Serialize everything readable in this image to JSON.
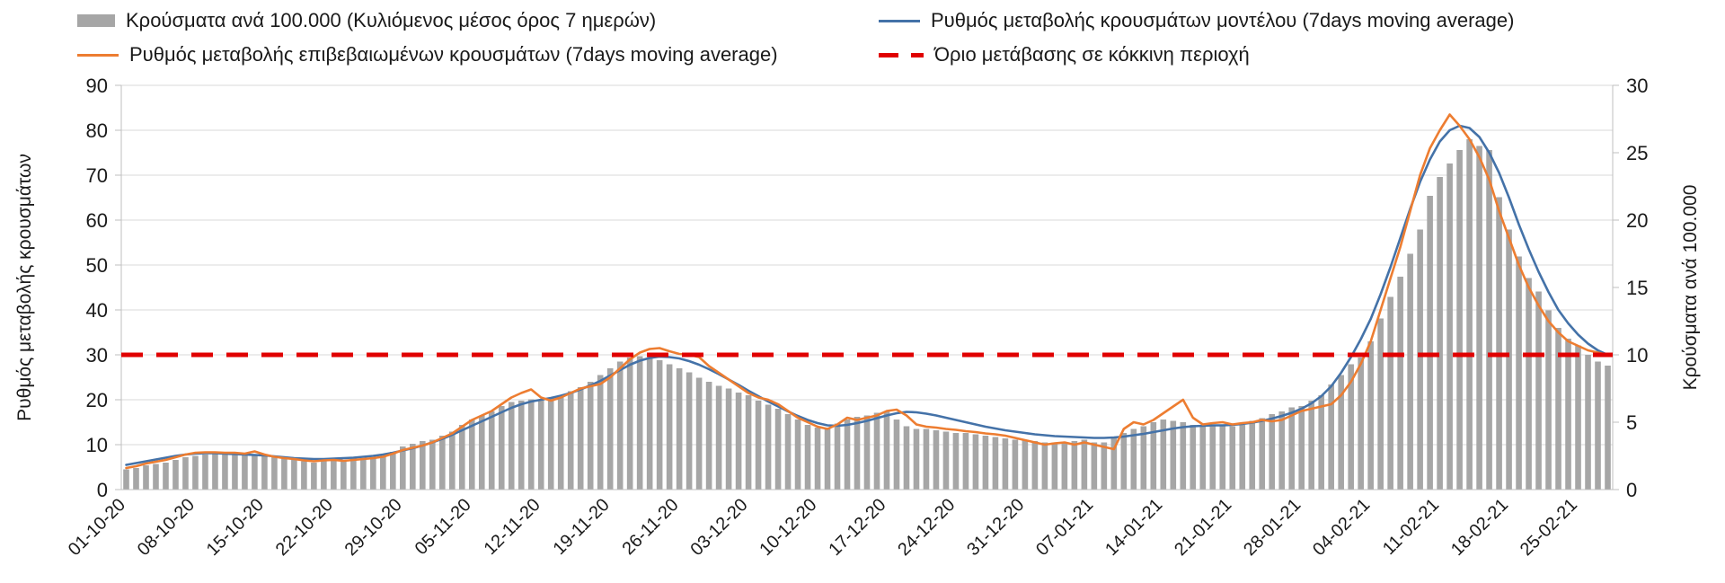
{
  "legend": {
    "bars": "Κρούσματα ανά 100.000 (Κυλιόμενος μέσος όρος 7 ημερών)",
    "model": "Ρυθμός μεταβολής κρουσμάτων μοντέλου (7days moving average)",
    "confirmed": "Ρυθμός μεταβολής επιβεβαιωμένων κρουσμάτων (7days moving average)",
    "threshold": "Όριο μετάβασης σε κόκκινη περιοχή"
  },
  "axes": {
    "left_title": "Ρυθμός μεταβολής κρουσμάτων",
    "right_title": "Κρούσματα ανά 100.000"
  },
  "colors": {
    "bar": "#a6a6a6",
    "model": "#4472a8",
    "confirmed": "#ed7d31",
    "threshold": "#e00000",
    "grid": "#d9d9d9",
    "axis": "#bfbfbf",
    "text": "#1a1a1a"
  },
  "chart_data": {
    "type": "combo_bar_line",
    "title": "",
    "left_ylabel": "Ρυθμός μεταβολής κρουσμάτων",
    "right_ylabel": "Κρούσματα ανά 100.000",
    "left_ylim": [
      0,
      90
    ],
    "right_ylim": [
      0,
      30
    ],
    "left_ticks": [
      0,
      10,
      20,
      30,
      40,
      50,
      60,
      70,
      80,
      90
    ],
    "right_ticks": [
      0,
      5,
      10,
      15,
      20,
      25,
      30
    ],
    "x_tick_every": 7,
    "grid": true,
    "legend_position": "top",
    "dates": [
      "01-10-20",
      "02-10-20",
      "03-10-20",
      "04-10-20",
      "05-10-20",
      "06-10-20",
      "07-10-20",
      "08-10-20",
      "09-10-20",
      "10-10-20",
      "11-10-20",
      "12-10-20",
      "13-10-20",
      "14-10-20",
      "15-10-20",
      "16-10-20",
      "17-10-20",
      "18-10-20",
      "19-10-20",
      "20-10-20",
      "21-10-20",
      "22-10-20",
      "23-10-20",
      "24-10-20",
      "25-10-20",
      "26-10-20",
      "27-10-20",
      "28-10-20",
      "29-10-20",
      "30-10-20",
      "31-10-20",
      "01-11-20",
      "02-11-20",
      "03-11-20",
      "04-11-20",
      "05-11-20",
      "06-11-20",
      "07-11-20",
      "08-11-20",
      "09-11-20",
      "10-11-20",
      "11-11-20",
      "12-11-20",
      "13-11-20",
      "14-11-20",
      "15-11-20",
      "16-11-20",
      "17-11-20",
      "18-11-20",
      "19-11-20",
      "20-11-20",
      "21-11-20",
      "22-11-20",
      "23-11-20",
      "24-11-20",
      "25-11-20",
      "26-11-20",
      "27-11-20",
      "28-11-20",
      "29-11-20",
      "30-11-20",
      "01-12-20",
      "02-12-20",
      "03-12-20",
      "04-12-20",
      "05-12-20",
      "06-12-20",
      "07-12-20",
      "08-12-20",
      "09-12-20",
      "10-12-20",
      "11-12-20",
      "12-12-20",
      "13-12-20",
      "14-12-20",
      "15-12-20",
      "16-12-20",
      "17-12-20",
      "18-12-20",
      "19-12-20",
      "20-12-20",
      "21-12-20",
      "22-12-20",
      "23-12-20",
      "24-12-20",
      "25-12-20",
      "26-12-20",
      "27-12-20",
      "28-12-20",
      "29-12-20",
      "30-12-20",
      "31-12-20",
      "01-01-21",
      "02-01-21",
      "03-01-21",
      "04-01-21",
      "05-01-21",
      "06-01-21",
      "07-01-21",
      "08-01-21",
      "09-01-21",
      "10-01-21",
      "11-01-21",
      "12-01-21",
      "13-01-21",
      "14-01-21",
      "15-01-21",
      "16-01-21",
      "17-01-21",
      "18-01-21",
      "19-01-21",
      "20-01-21",
      "21-01-21",
      "22-01-21",
      "23-01-21",
      "24-01-21",
      "25-01-21",
      "26-01-21",
      "27-01-21",
      "28-01-21",
      "29-01-21",
      "30-01-21",
      "31-01-21",
      "01-02-21",
      "02-02-21",
      "03-02-21",
      "04-02-21",
      "05-02-21",
      "06-02-21",
      "07-02-21",
      "08-02-21",
      "09-02-21",
      "10-02-21",
      "11-02-21",
      "12-02-21",
      "13-02-21",
      "14-02-21",
      "15-02-21",
      "16-02-21",
      "17-02-21",
      "18-02-21",
      "19-02-21",
      "20-02-21",
      "21-02-21",
      "22-02-21",
      "23-02-21",
      "24-02-21",
      "25-02-21",
      "26-02-21",
      "27-02-21",
      "28-02-21"
    ],
    "series": [
      {
        "id": "cases_per_100k",
        "name": "Κρούσματα ανά 100.000 (Κυλιόμενος μέσος όρος 7 ημερών)",
        "type": "bar",
        "axis": "right",
        "values": [
          1.5,
          1.6,
          1.8,
          1.9,
          2.0,
          2.2,
          2.4,
          2.5,
          2.6,
          2.7,
          2.7,
          2.7,
          2.6,
          2.5,
          2.5,
          2.4,
          2.3,
          2.2,
          2.1,
          2.0,
          2.1,
          2.2,
          2.2,
          2.3,
          2.3,
          2.4,
          2.5,
          2.8,
          3.2,
          3.4,
          3.6,
          3.7,
          4.0,
          4.3,
          4.8,
          5.2,
          5.5,
          5.8,
          6.2,
          6.5,
          6.6,
          6.7,
          6.7,
          6.8,
          7.0,
          7.3,
          7.6,
          8.0,
          8.5,
          9.0,
          9.5,
          9.8,
          9.9,
          9.8,
          9.6,
          9.3,
          9.0,
          8.7,
          8.3,
          8.0,
          7.7,
          7.5,
          7.2,
          7.0,
          6.6,
          6.3,
          6.0,
          5.6,
          5.2,
          4.8,
          4.6,
          4.5,
          4.9,
          5.2,
          5.4,
          5.5,
          5.7,
          5.8,
          5.2,
          4.7,
          4.5,
          4.5,
          4.4,
          4.3,
          4.2,
          4.2,
          4.1,
          4.0,
          3.9,
          3.8,
          3.7,
          3.7,
          3.6,
          3.5,
          3.5,
          3.5,
          3.6,
          3.7,
          3.5,
          3.5,
          3.8,
          4.2,
          4.5,
          4.7,
          5.0,
          5.2,
          5.1,
          5.0,
          4.8,
          4.7,
          4.7,
          4.7,
          4.7,
          4.8,
          5.1,
          5.3,
          5.6,
          5.8,
          6.1,
          6.2,
          6.6,
          7.0,
          7.8,
          8.5,
          9.3,
          9.8,
          11.0,
          12.7,
          14.3,
          15.8,
          17.5,
          19.3,
          21.8,
          23.2,
          24.2,
          25.2,
          26.0,
          25.5,
          25.2,
          21.7,
          19.3,
          17.3,
          15.7,
          14.7,
          13.3,
          12.0,
          11.2,
          10.7,
          10.0,
          9.5,
          9.2
        ]
      },
      {
        "id": "model_rate",
        "name": "Ρυθμός μεταβολής κρουσμάτων μοντέλου (7days moving average)",
        "type": "line",
        "axis": "left",
        "values": [
          5.5,
          5.9,
          6.3,
          6.7,
          7.1,
          7.5,
          7.8,
          8.0,
          8.1,
          8.1,
          8.0,
          7.9,
          7.8,
          7.7,
          7.6,
          7.4,
          7.2,
          7.0,
          6.9,
          6.8,
          6.8,
          6.9,
          7.0,
          7.1,
          7.3,
          7.5,
          7.8,
          8.2,
          8.7,
          9.2,
          9.8,
          10.5,
          11.3,
          12.2,
          13.2,
          14.2,
          15.2,
          16.2,
          17.2,
          18.2,
          19.0,
          19.6,
          20.0,
          20.4,
          20.9,
          21.5,
          22.3,
          23.2,
          24.2,
          25.4,
          26.6,
          27.8,
          28.7,
          29.3,
          29.6,
          29.5,
          29.2,
          28.6,
          27.8,
          26.8,
          25.7,
          24.5,
          23.3,
          22.0,
          20.8,
          19.6,
          18.5,
          17.4,
          16.4,
          15.5,
          14.8,
          14.3,
          14.2,
          14.4,
          14.8,
          15.3,
          15.9,
          16.5,
          17.0,
          17.3,
          17.2,
          16.9,
          16.5,
          16.0,
          15.5,
          15.0,
          14.5,
          14.0,
          13.6,
          13.2,
          12.9,
          12.6,
          12.3,
          12.1,
          11.9,
          11.8,
          11.7,
          11.6,
          11.5,
          11.5,
          11.6,
          11.8,
          12.1,
          12.4,
          12.8,
          13.2,
          13.6,
          13.9,
          14.1,
          14.2,
          14.3,
          14.3,
          14.4,
          14.6,
          14.9,
          15.3,
          15.8,
          16.4,
          17.1,
          18.0,
          19.2,
          20.8,
          23.0,
          26.0,
          29.5,
          33.5,
          38.0,
          43.5,
          49.5,
          56.0,
          62.5,
          68.5,
          73.5,
          77.5,
          80.0,
          81.0,
          80.5,
          78.5,
          75.0,
          70.5,
          65.0,
          59.0,
          53.5,
          48.5,
          44.0,
          40.0,
          37.0,
          34.5,
          32.5,
          31.0,
          30.0
        ]
      },
      {
        "id": "confirmed_rate",
        "name": "Ρυθμός μεταβολής επιβεβαιωμένων κρουσμάτων (7days moving average)",
        "type": "line",
        "axis": "left",
        "values": [
          4.8,
          5.2,
          5.8,
          6.2,
          6.6,
          7.2,
          7.8,
          8.2,
          8.3,
          8.3,
          8.2,
          8.2,
          8.0,
          8.5,
          7.8,
          7.3,
          7.0,
          6.8,
          6.5,
          6.3,
          6.5,
          6.6,
          6.4,
          6.6,
          6.8,
          7.0,
          7.3,
          8.0,
          8.8,
          9.3,
          9.8,
          10.5,
          11.5,
          12.5,
          14.0,
          15.5,
          16.5,
          17.5,
          19.0,
          20.5,
          21.5,
          22.3,
          20.5,
          19.8,
          20.5,
          21.5,
          22.5,
          23.0,
          23.5,
          25.0,
          27.0,
          29.0,
          30.5,
          31.3,
          31.5,
          30.8,
          30.2,
          30.0,
          29.5,
          27.5,
          26.0,
          24.5,
          23.0,
          21.5,
          20.5,
          20.0,
          19.0,
          17.5,
          16.0,
          15.0,
          14.0,
          13.5,
          14.5,
          16.0,
          15.5,
          16.0,
          16.5,
          17.5,
          17.8,
          16.5,
          14.5,
          14.0,
          13.8,
          13.5,
          13.3,
          13.0,
          12.8,
          12.5,
          12.3,
          12.0,
          11.5,
          11.0,
          10.5,
          10.0,
          10.3,
          10.5,
          10.0,
          10.5,
          10.0,
          9.5,
          9.0,
          13.5,
          15.0,
          14.5,
          15.5,
          17.0,
          18.5,
          20.0,
          16.0,
          14.5,
          14.8,
          15.0,
          14.5,
          14.8,
          15.0,
          15.5,
          15.2,
          15.5,
          16.5,
          17.5,
          18.0,
          18.5,
          19.0,
          21.0,
          24.0,
          28.0,
          33.0,
          40.0,
          47.0,
          54.0,
          62.0,
          70.0,
          76.0,
          80.0,
          83.5,
          81.0,
          78.0,
          74.0,
          69.0,
          62.0,
          56.0,
          50.0,
          45.0,
          41.0,
          37.5,
          35.0,
          33.0,
          32.0,
          31.0,
          30.5,
          30.0
        ]
      },
      {
        "id": "red_threshold",
        "name": "Όριο μετάβασης σε κόκκινη περιοχή",
        "type": "hline",
        "axis": "left",
        "value": 30
      }
    ]
  }
}
